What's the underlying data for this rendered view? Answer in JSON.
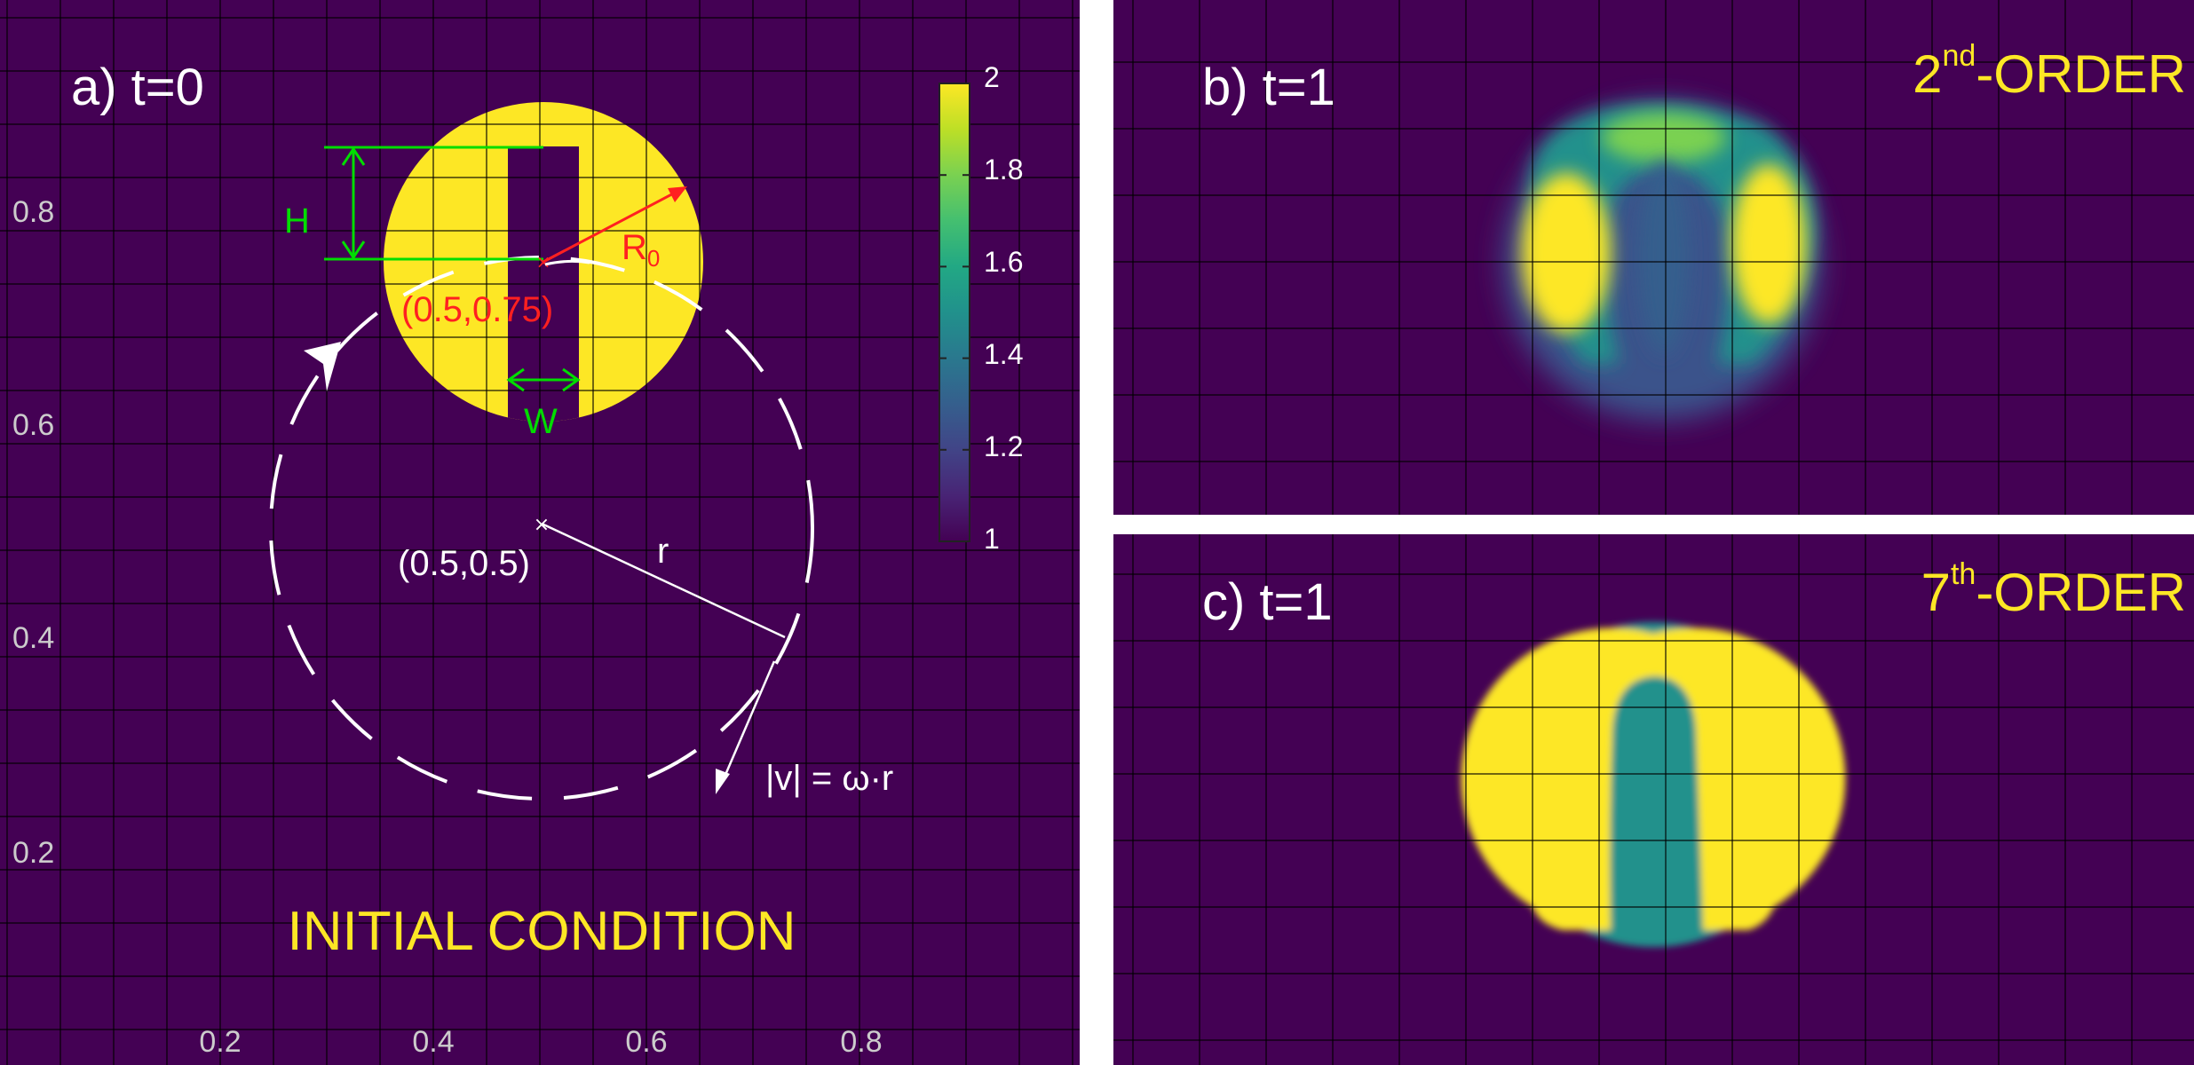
{
  "panel_a": {
    "label": "a) t=0",
    "caption": "INITIAL CONDITION",
    "y_ticks": [
      "0.8",
      "0.6",
      "0.4",
      "0.2"
    ],
    "x_ticks": [
      "0.2",
      "0.4",
      "0.6",
      "0.8"
    ],
    "annotations": {
      "height": "H",
      "width": "W",
      "radius": "R",
      "radius_sub": "0",
      "disk_center": "(0.5,0.75)",
      "rotation_center": "(0.5,0.5)",
      "orbit_radius": "r",
      "velocity": "|v| = ω·r"
    },
    "colorbar": {
      "ticks": [
        "2",
        "1.8",
        "1.6",
        "1.4",
        "1.2",
        "1"
      ],
      "range": [
        1,
        2
      ]
    }
  },
  "panel_b": {
    "label": "b) t=1",
    "order_number": "2",
    "order_sup": "nd",
    "order_suffix": "-ORDER"
  },
  "panel_c": {
    "label": "c) t=1",
    "order_number": "7",
    "order_sup": "th",
    "order_suffix": "-ORDER"
  },
  "colors": {
    "background": "#440154",
    "high": "#fde725",
    "mid": "#21918c",
    "low": "#3b528b",
    "annotation_green": "#00dd00",
    "annotation_red": "#ff2020",
    "annotation_white": "#ffffff",
    "caption_yellow": "#fde725"
  }
}
